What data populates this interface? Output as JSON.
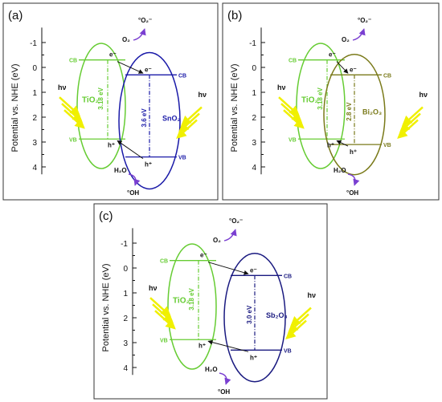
{
  "colors": {
    "tio2": "#66cc33",
    "sno2": "#1a1aa8",
    "bi2o3": "#7a7a1a",
    "sb2o3": "#1a1a80",
    "light": "#f0f000",
    "arrow_purple": "#7a3fd1",
    "frame": "#333333"
  },
  "common": {
    "y_axis_label": "Potential vs. NHE (eV)",
    "y_ticks": [
      "-1",
      "0",
      "1",
      "2",
      "3",
      "4"
    ],
    "hv": "hν",
    "cb": "CB",
    "vb": "VB",
    "electron": "e⁻",
    "hole": "h⁺",
    "o2": "O₂",
    "superoxide": "°O₂⁻",
    "h2o": "H₂O",
    "hydroxyl": "°OH",
    "tio2_label": "TiO₂",
    "tio2_gap": "3.18 eV"
  },
  "panels": [
    {
      "id": "a",
      "label": "(a)",
      "partner": "SnO₂",
      "partner_gap": "3.6 eV"
    },
    {
      "id": "b",
      "label": "(b)",
      "partner": "Bi₂O₃",
      "partner_gap": "2.8 eV"
    },
    {
      "id": "c",
      "label": "(c)",
      "partner": "Sb₂O₃",
      "partner_gap": "3.0 eV"
    }
  ]
}
